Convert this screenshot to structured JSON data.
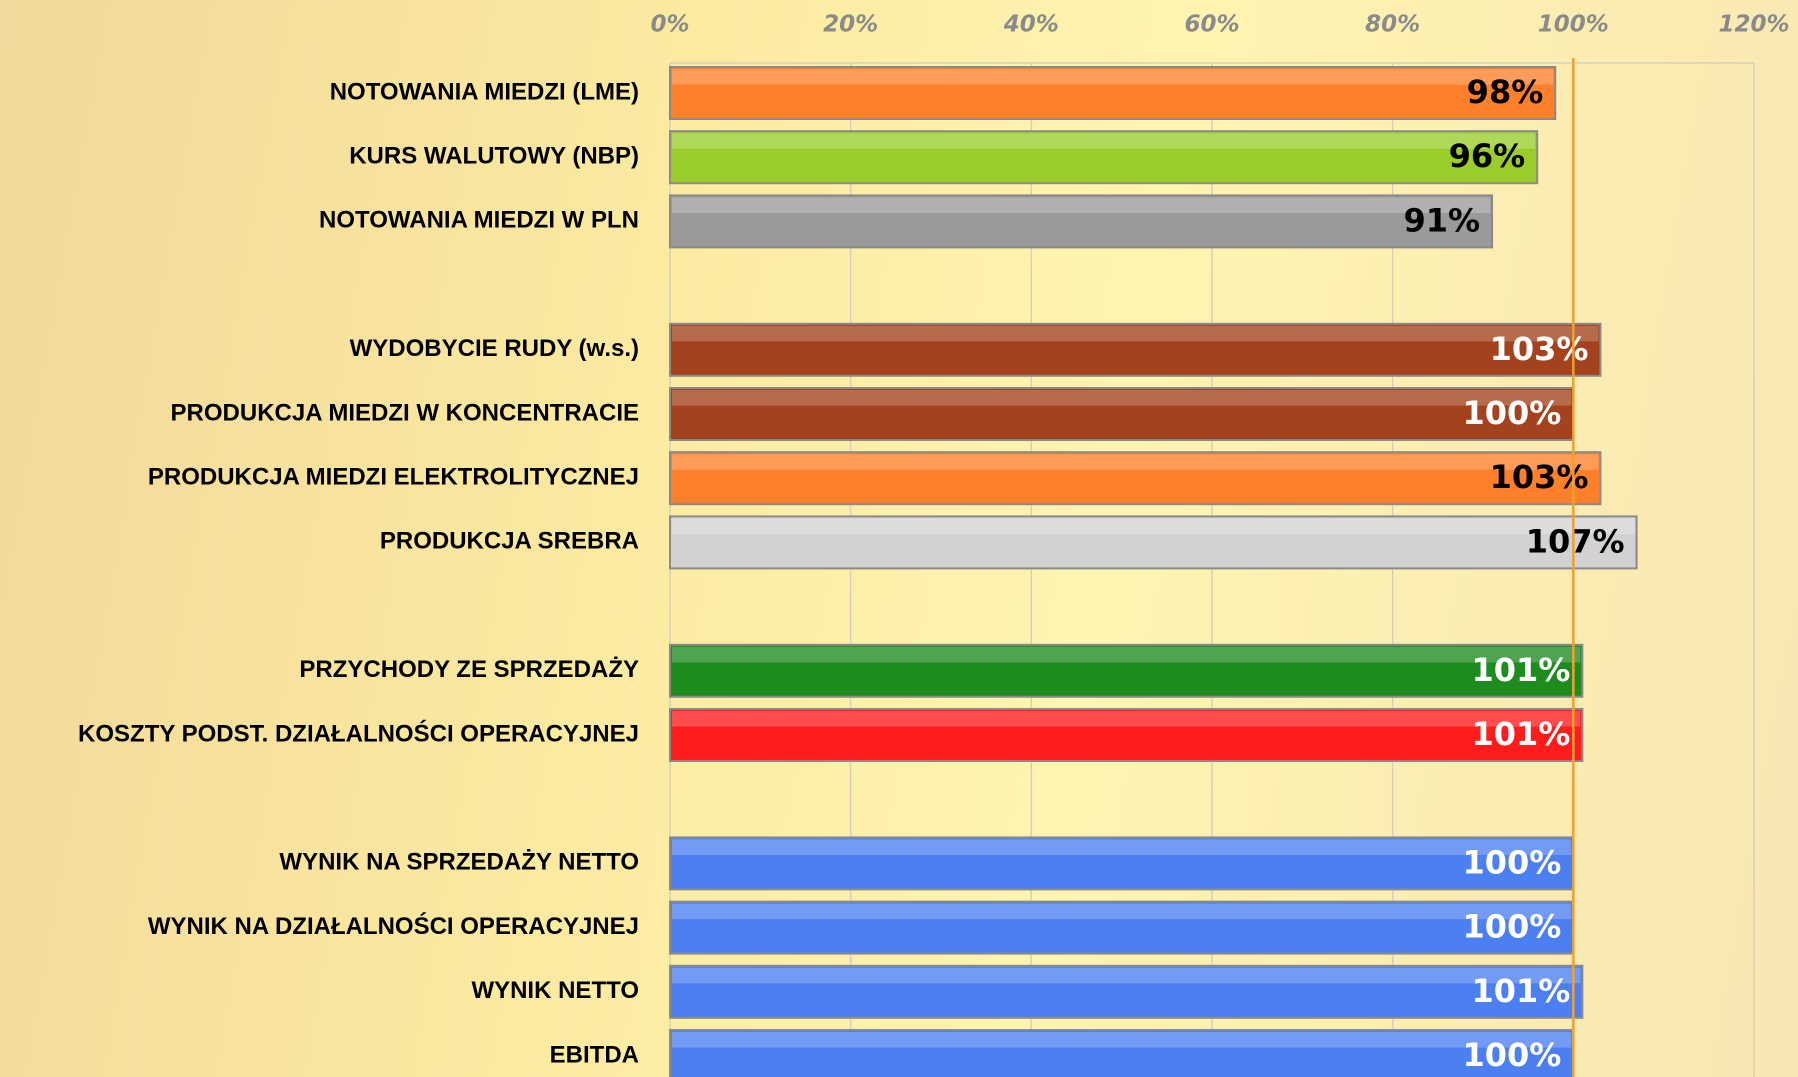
{
  "chart_data": {
    "type": "hbar",
    "categories": [
      "NOTOWANIA MIEDZI (LME)",
      "KURS WALUTOWY (NBP)",
      "NOTOWANIA MIEDZI W PLN",
      null,
      "WYDOBYCIE RUDY (w.s.)",
      "PRODUKCJA MIEDZI W KONCENTRACIE",
      "PRODUKCJA MIEDZI ELEKTROLITYCZNEJ",
      "PRODUKCJA SREBRA",
      null,
      "PRZYCHODY ZE SPRZEDAŻY",
      "KOSZTY PODST. DZIAŁALNOŚCI OPERACYJNEJ",
      null,
      "WYNIK NA SPRZEDAŻY NETTO",
      "WYNIK NA DZIAŁALNOŚCI OPERACYJNEJ",
      "WYNIK NETTO",
      "EBITDA"
    ],
    "values": [
      98,
      96,
      91,
      null,
      103,
      100,
      103,
      107,
      null,
      101,
      101,
      null,
      100,
      100,
      101,
      100
    ],
    "value_labels": [
      "98%",
      "96%",
      "91%",
      null,
      "103%",
      "100%",
      "103%",
      "107%",
      null,
      "101%",
      "101%",
      null,
      "100%",
      "100%",
      "101%",
      "100%"
    ],
    "colors": [
      "#ff7f2a",
      "#9acd2a",
      "#9a9a9a",
      null,
      "#a3421c",
      "#a3421c",
      "#ff7f2a",
      "#d2d2d2",
      null,
      "#1e8c1e",
      "#ff1c1c",
      null,
      "#4c7ff2",
      "#4c7ff2",
      "#4c7ff2",
      "#4c7ff2"
    ],
    "label_colors": [
      "#000000",
      "#000000",
      "#000000",
      null,
      "#ffffff",
      "#ffffff",
      "#000000",
      "#000000",
      null,
      "#ffffff",
      "#ffffff",
      null,
      "#ffffff",
      "#ffffff",
      "#ffffff",
      "#ffffff"
    ],
    "xlim": [
      0,
      120
    ],
    "xticks": [
      {
        "value": 0,
        "label": "0%"
      },
      {
        "value": 20,
        "label": "20%"
      },
      {
        "value": 40,
        "label": "40%"
      },
      {
        "value": 60,
        "label": "60%"
      },
      {
        "value": 80,
        "label": "80%"
      },
      {
        "value": 100,
        "label": "100%"
      },
      {
        "value": 120,
        "label": "120%"
      }
    ],
    "grid": true,
    "reference_line": {
      "value": 100,
      "color": "#f0a030"
    }
  }
}
